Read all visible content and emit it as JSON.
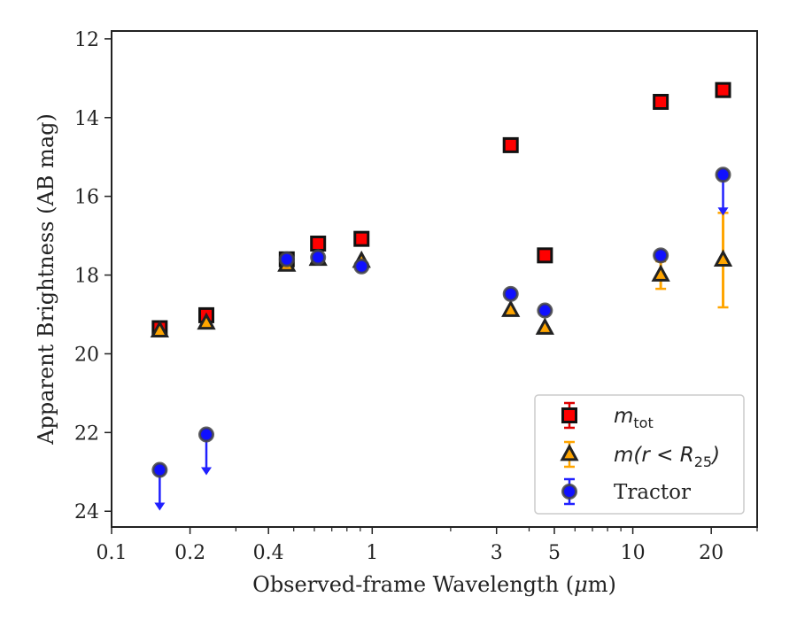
{
  "chart_data": {
    "type": "scatter",
    "xlabel_prefix": "Observed-frame Wavelength (",
    "xlabel_unit_greek": "μ",
    "xlabel_unit_rest": "m)",
    "ylabel": "Apparent Brightness (AB mag)",
    "x_scale": "log",
    "xlim": [
      0.1,
      30
    ],
    "ylim": [
      24.4,
      11.8
    ],
    "y_inverted": true,
    "x_major_ticks": [
      {
        "value": 0.1,
        "label": "0.1"
      },
      {
        "value": 0.2,
        "label": "0.2"
      },
      {
        "value": 0.4,
        "label": "0.4"
      },
      {
        "value": 1,
        "label": "1"
      },
      {
        "value": 3,
        "label": "3"
      },
      {
        "value": 5,
        "label": "5"
      },
      {
        "value": 10,
        "label": "10"
      },
      {
        "value": 20,
        "label": "20"
      }
    ],
    "x_minor_ticks": [
      0.3,
      0.5,
      0.6,
      0.7,
      0.8,
      0.9,
      2,
      4,
      6,
      7,
      8,
      9,
      30
    ],
    "y_ticks": [
      {
        "value": 12,
        "label": "12"
      },
      {
        "value": 14,
        "label": "14"
      },
      {
        "value": 16,
        "label": "16"
      },
      {
        "value": 18,
        "label": "18"
      },
      {
        "value": 20,
        "label": "20"
      },
      {
        "value": 22,
        "label": "22"
      },
      {
        "value": 24,
        "label": "24"
      }
    ],
    "legend_position": "lower right",
    "series": [
      {
        "key": "mtot",
        "legend_main": "m",
        "legend_sub": "tot",
        "marker": "square",
        "color": "#ff0000",
        "edge": "#111111",
        "errcolor": "#dd0000",
        "points": [
          {
            "x": 0.153,
            "y": 19.35,
            "err": 0
          },
          {
            "x": 0.231,
            "y": 19.02,
            "err": 0
          },
          {
            "x": 0.47,
            "y": 17.6,
            "err": 0
          },
          {
            "x": 0.62,
            "y": 17.2,
            "err": 0
          },
          {
            "x": 0.91,
            "y": 17.08,
            "err": 0
          },
          {
            "x": 3.4,
            "y": 14.7,
            "err": 0
          },
          {
            "x": 4.6,
            "y": 17.5,
            "err": 0
          },
          {
            "x": 12.8,
            "y": 13.6,
            "err": 0
          },
          {
            "x": 22.2,
            "y": 13.3,
            "err": 0
          }
        ]
      },
      {
        "key": "mr25",
        "legend_main": "m(r < R",
        "legend_sub": "25",
        "legend_tail": ")",
        "marker": "triangle",
        "color": "#ffa500",
        "edge": "#222222",
        "errcolor": "#ffa500",
        "points": [
          {
            "x": 0.153,
            "y": 19.42,
            "err": 0
          },
          {
            "x": 0.231,
            "y": 19.22,
            "err": 0
          },
          {
            "x": 0.47,
            "y": 17.75,
            "err": 0
          },
          {
            "x": 0.62,
            "y": 17.6,
            "err": 0
          },
          {
            "x": 0.91,
            "y": 17.65,
            "err": 0
          },
          {
            "x": 3.4,
            "y": 18.9,
            "err": 0
          },
          {
            "x": 4.6,
            "y": 19.35,
            "err": 0
          },
          {
            "x": 12.8,
            "y": 18.0,
            "err": 0.35
          },
          {
            "x": 22.2,
            "y": 17.62,
            "err": 1.2
          }
        ]
      },
      {
        "key": "tractor",
        "legend_main": "Tractor",
        "marker": "circle",
        "color": "#1010ff",
        "edge": "#444444",
        "errcolor": "#2020ff",
        "points": [
          {
            "x": 0.153,
            "y": 22.95,
            "err": 0,
            "upper_limit": true
          },
          {
            "x": 0.231,
            "y": 22.05,
            "err": 0,
            "upper_limit": true
          },
          {
            "x": 0.47,
            "y": 17.6,
            "err": 0
          },
          {
            "x": 0.62,
            "y": 17.55,
            "err": 0
          },
          {
            "x": 0.91,
            "y": 17.78,
            "err": 0
          },
          {
            "x": 3.4,
            "y": 18.48,
            "err": 0
          },
          {
            "x": 4.6,
            "y": 18.9,
            "err": 0
          },
          {
            "x": 12.8,
            "y": 17.5,
            "err": 0
          },
          {
            "x": 22.2,
            "y": 15.45,
            "err": 0,
            "upper_limit": true
          }
        ]
      }
    ]
  }
}
